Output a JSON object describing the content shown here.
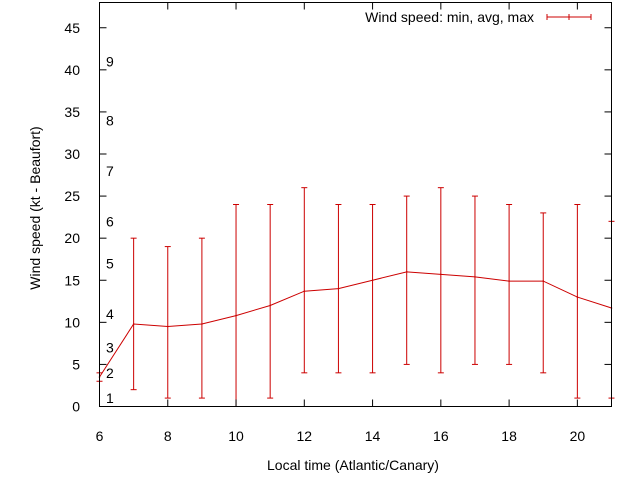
{
  "chart_data": {
    "type": "line",
    "title": "",
    "xlabel": "Local time (Atlantic/Canary)",
    "ylabel": "Wind speed (kt - Beaufort)",
    "xlim": [
      6,
      21
    ],
    "ylim": [
      0,
      48
    ],
    "x_ticks": [
      6,
      8,
      10,
      12,
      14,
      16,
      18,
      20
    ],
    "y_ticks": [
      0,
      5,
      10,
      15,
      20,
      25,
      30,
      35,
      40,
      45
    ],
    "grid": false,
    "legend": {
      "label": "Wind speed: min, avg, max",
      "position": "top-right"
    },
    "series": [
      {
        "name": "Wind speed: min, avg, max",
        "color": "#cc0000",
        "x": [
          6,
          7,
          8,
          9,
          10,
          11,
          12,
          13,
          14,
          15,
          16,
          17,
          18,
          19,
          20,
          21
        ],
        "avg": [
          3.5,
          9.8,
          9.5,
          9.8,
          10.8,
          12,
          13.7,
          14,
          15,
          16,
          15.7,
          15.4,
          14.9,
          14.9,
          13,
          11.7
        ],
        "min": [
          3,
          2,
          1,
          1,
          0,
          1,
          4,
          4,
          4,
          5,
          4,
          5,
          5,
          4,
          1,
          1
        ],
        "max": [
          4,
          20,
          19,
          20,
          24,
          24,
          26,
          24,
          24,
          25,
          26,
          25,
          24,
          23,
          24,
          22
        ]
      }
    ],
    "beaufort_scale": [
      {
        "label": "1",
        "kt": 1
      },
      {
        "label": "2",
        "kt": 4
      },
      {
        "label": "3",
        "kt": 7
      },
      {
        "label": "4",
        "kt": 11
      },
      {
        "label": "5",
        "kt": 17
      },
      {
        "label": "6",
        "kt": 22
      },
      {
        "label": "7",
        "kt": 28
      },
      {
        "label": "8",
        "kt": 34
      },
      {
        "label": "9",
        "kt": 41
      }
    ]
  }
}
